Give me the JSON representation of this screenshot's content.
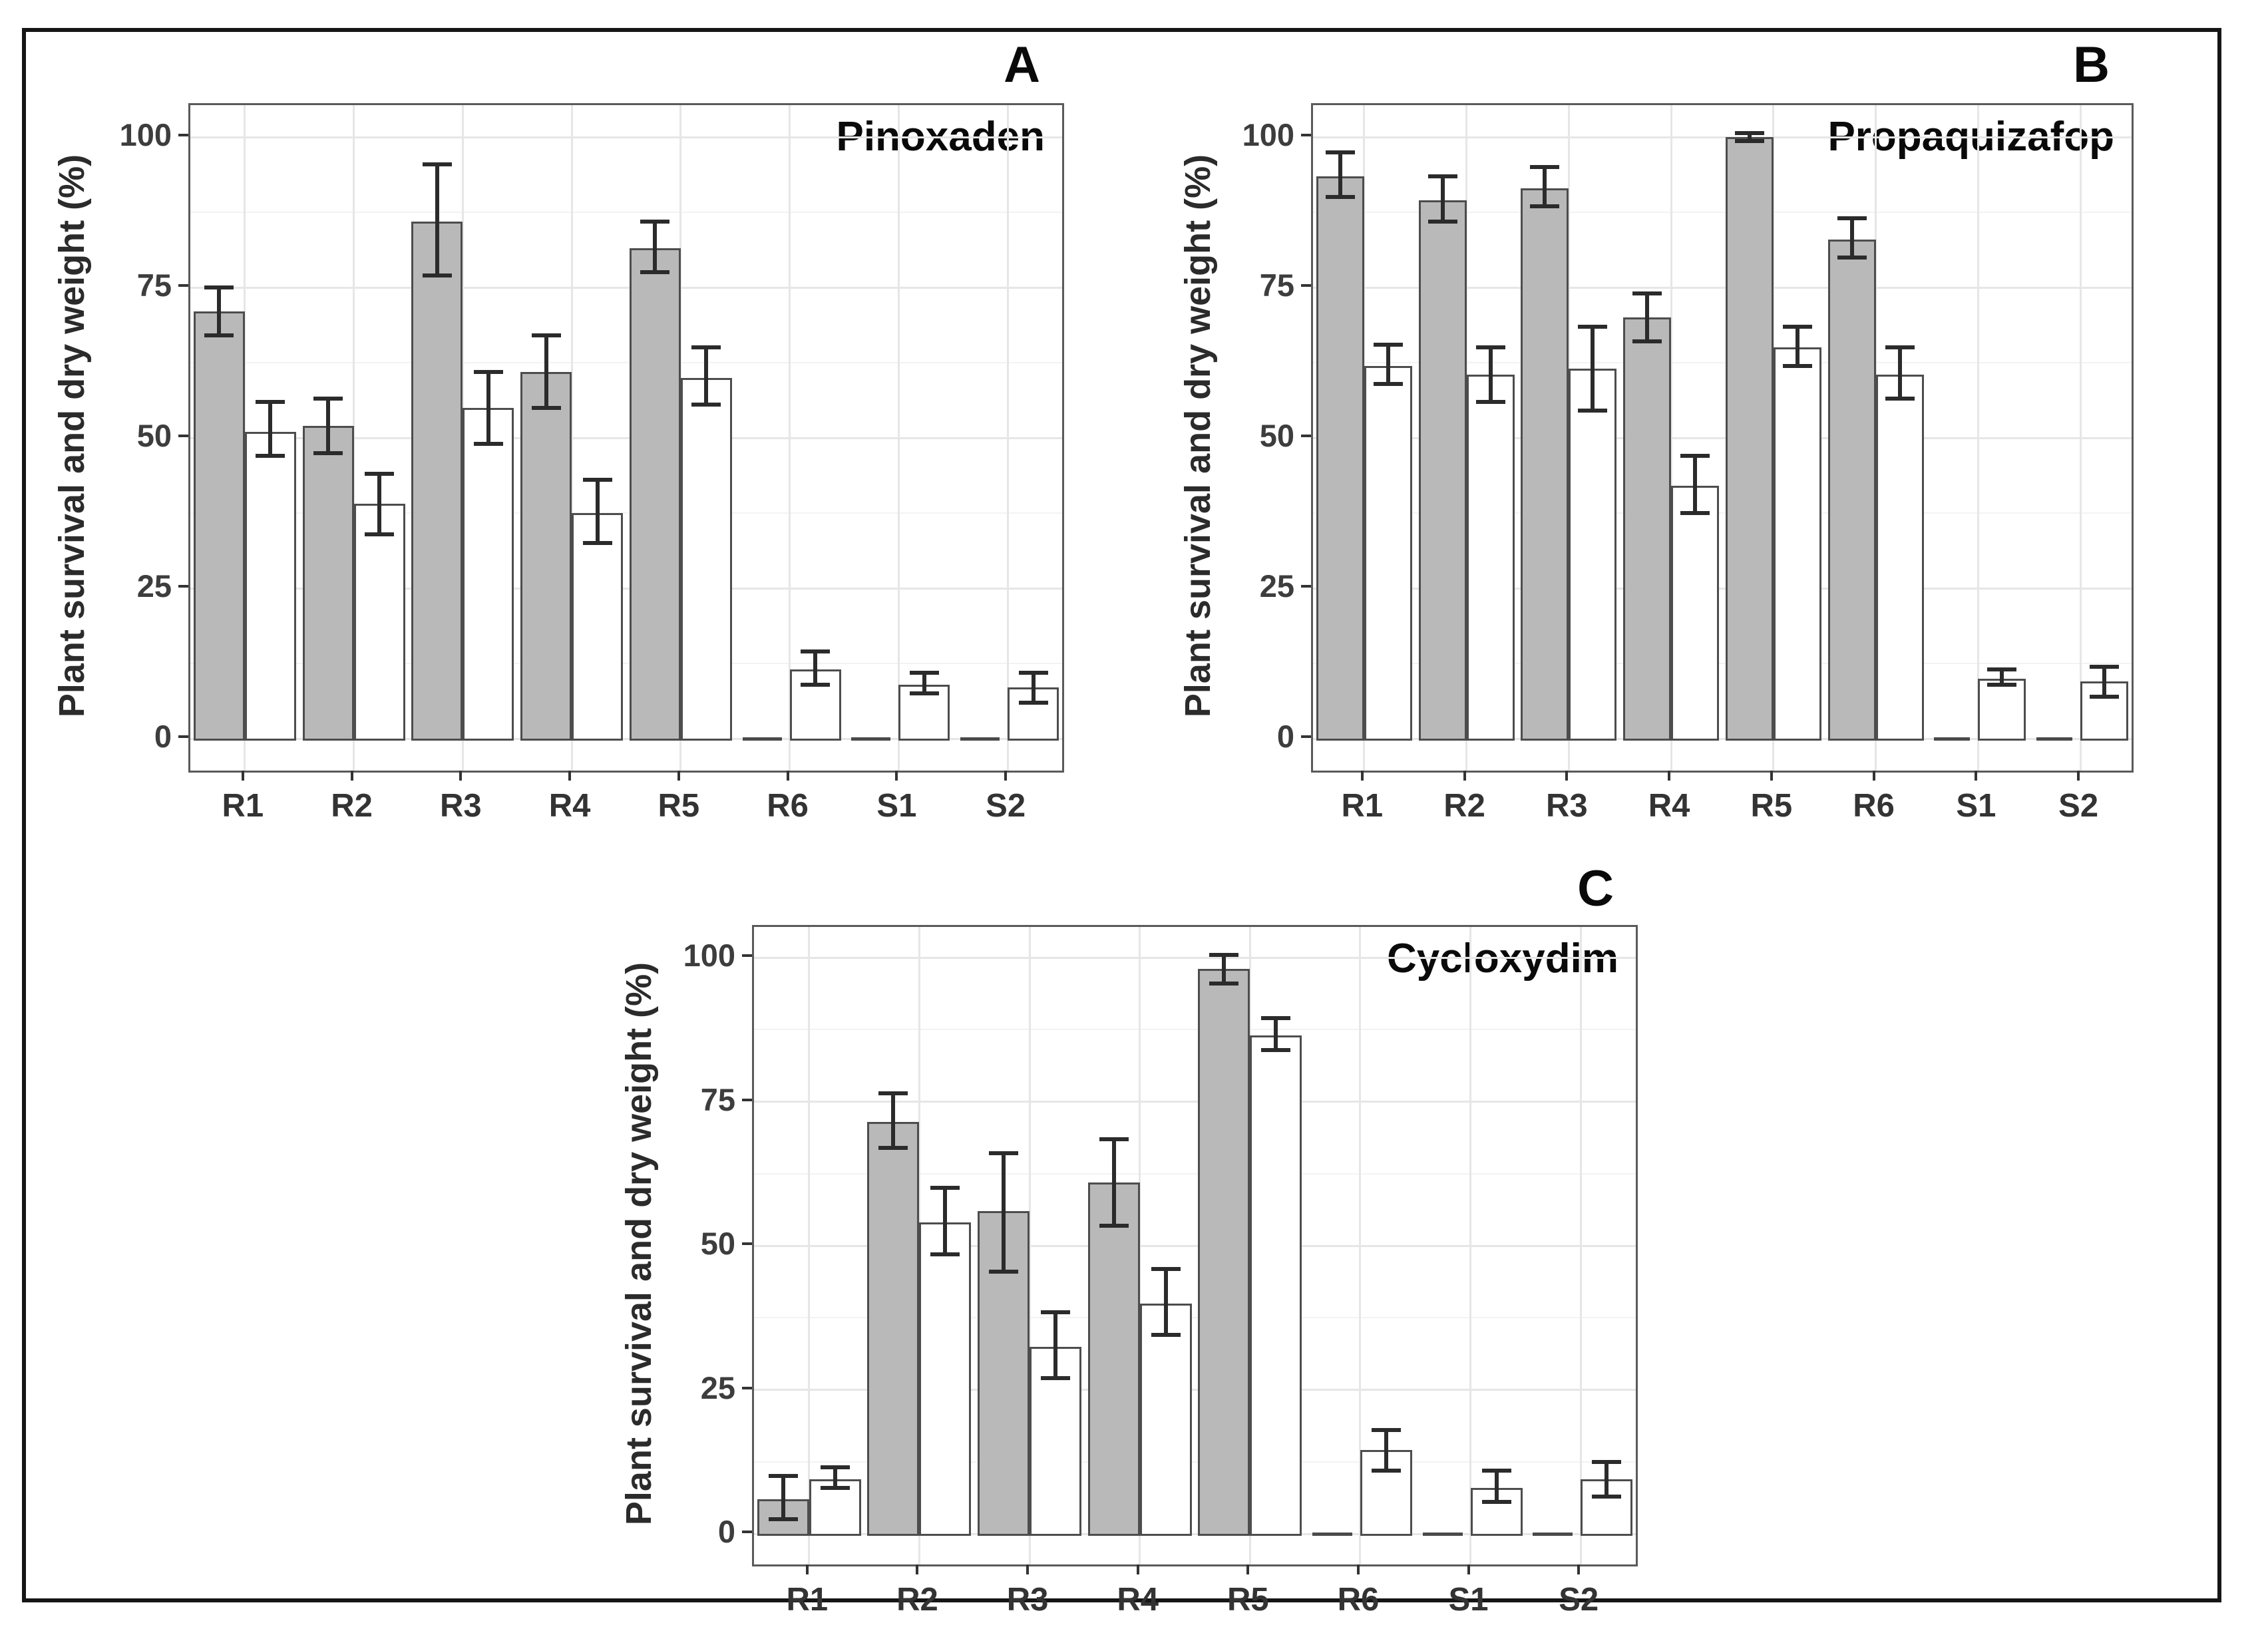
{
  "figure": {
    "ylabel": "Plant survival and dry weight (%)",
    "colors": {
      "survival_fill": "#b9b9b9",
      "dry_weight_fill": "#ffffff",
      "bar_stroke": "#4d4d4d",
      "error_bar": "#2b2b2b",
      "grid_major": "#e6e6e6",
      "grid_minor": "#f3f3f3",
      "panel_border": "#5a5a5a",
      "figure_border": "#161616"
    }
  },
  "chart_data": [
    {
      "type": "bar",
      "panel_letter": "A",
      "title": "Pinoxaden",
      "ylabel": "Plant survival and dry weight (%)",
      "xlabel": "",
      "ylim": [
        0,
        100
      ],
      "yticks": [
        0,
        25,
        50,
        75,
        100
      ],
      "yticks_minor": [
        12.5,
        37.5,
        62.5,
        87.5
      ],
      "grid": true,
      "legend": false,
      "categories": [
        "R1",
        "R2",
        "R3",
        "R4",
        "R5",
        "R6",
        "S1",
        "S2"
      ],
      "series": [
        {
          "name": "Plant survival (gray bars)",
          "fill": "#b9b9b9",
          "values": [
            71,
            52,
            86,
            61,
            81.5,
            0,
            0,
            0
          ],
          "err_low": [
            67,
            47.5,
            77,
            55,
            77.5,
            null,
            null,
            null
          ],
          "err_high": [
            75,
            56.5,
            95.5,
            67,
            86,
            null,
            null,
            null
          ]
        },
        {
          "name": "Dry weight (white bars)",
          "fill": "#ffffff",
          "values": [
            51,
            39,
            55,
            37.5,
            60,
            11.5,
            9,
            8.5
          ],
          "err_low": [
            47,
            34,
            49,
            32.5,
            55.5,
            9,
            7.5,
            6
          ],
          "err_high": [
            56,
            44,
            61,
            43,
            65,
            14.5,
            11,
            11
          ]
        }
      ]
    },
    {
      "type": "bar",
      "panel_letter": "B",
      "title": "Propaquizafop",
      "ylabel": "Plant survival and dry weight (%)",
      "xlabel": "",
      "ylim": [
        0,
        100
      ],
      "yticks": [
        0,
        25,
        50,
        75,
        100
      ],
      "yticks_minor": [
        12.5,
        37.5,
        62.5,
        87.5
      ],
      "grid": true,
      "legend": false,
      "categories": [
        "R1",
        "R2",
        "R3",
        "R4",
        "R5",
        "R6",
        "S1",
        "S2"
      ],
      "series": [
        {
          "name": "Plant survival (gray bars)",
          "fill": "#b9b9b9",
          "values": [
            93.5,
            89.5,
            91.5,
            70,
            100,
            83,
            0,
            0
          ],
          "err_low": [
            90,
            86,
            88.5,
            66,
            99.3,
            80,
            null,
            null
          ],
          "err_high": [
            97.5,
            93.5,
            95,
            74,
            100.7,
            86.5,
            null,
            null
          ]
        },
        {
          "name": "Dry weight (white bars)",
          "fill": "#ffffff",
          "values": [
            62,
            60.5,
            61.5,
            42,
            65,
            60.5,
            10,
            9.5
          ],
          "err_low": [
            59,
            56,
            54.5,
            37.5,
            62,
            56.5,
            9,
            7
          ],
          "err_high": [
            65.5,
            65,
            68.5,
            47,
            68.5,
            65,
            11.5,
            12
          ]
        }
      ]
    },
    {
      "type": "bar",
      "panel_letter": "C",
      "title": "Cycloxydim",
      "ylabel": "Plant survival and dry weight (%)",
      "xlabel": "",
      "ylim": [
        0,
        100
      ],
      "yticks": [
        0,
        25,
        50,
        75,
        100
      ],
      "yticks_minor": [
        12.5,
        37.5,
        62.5,
        87.5
      ],
      "grid": true,
      "legend": false,
      "categories": [
        "R1",
        "R2",
        "R3",
        "R4",
        "R5",
        "R6",
        "S1",
        "S2"
      ],
      "series": [
        {
          "name": "Plant survival (gray bars)",
          "fill": "#b9b9b9",
          "values": [
            6,
            71.5,
            56,
            61,
            98,
            0,
            0,
            0
          ],
          "err_low": [
            2.5,
            67,
            45.5,
            53.5,
            95.5,
            null,
            null,
            null
          ],
          "err_high": [
            10,
            76.5,
            66,
            68.5,
            100.5,
            null,
            null,
            null
          ]
        },
        {
          "name": "Dry weight (white bars)",
          "fill": "#ffffff",
          "values": [
            9.5,
            54,
            32.5,
            40,
            86.5,
            14.5,
            8,
            9.5
          ],
          "err_low": [
            8,
            48.5,
            27,
            34.5,
            84,
            11,
            5.5,
            6.5
          ],
          "err_high": [
            11.5,
            60,
            38.5,
            46,
            89.5,
            18,
            11,
            12.5
          ]
        }
      ]
    }
  ]
}
